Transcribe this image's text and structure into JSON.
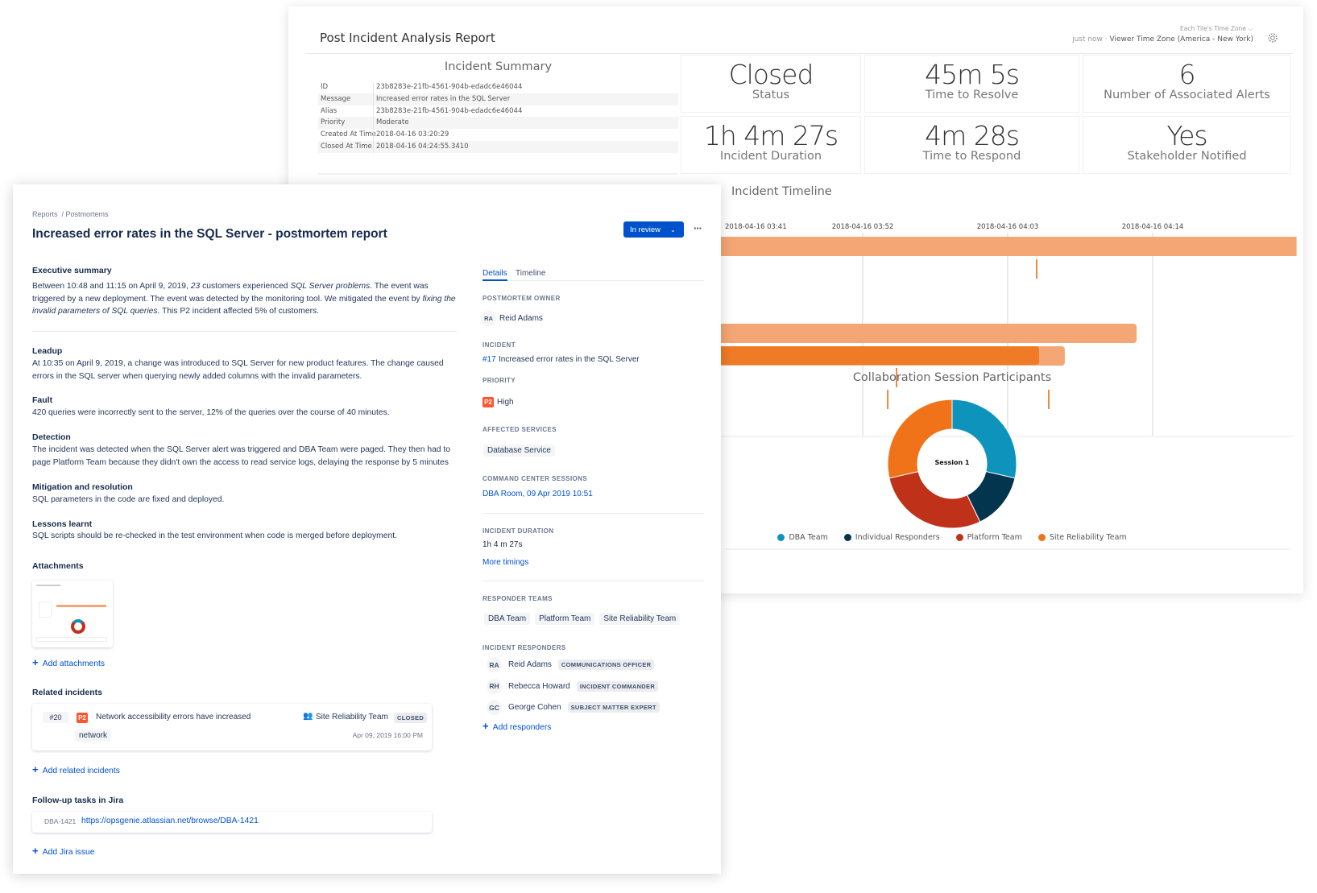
{
  "report": {
    "title": "Post Incident Analysis Report",
    "tz_select": "Each Tile's Time Zone",
    "updated": "just now",
    "separator": "·",
    "tz_label": "Viewer Time Zone (America - New York)",
    "settings_icon": "gear-icon"
  },
  "summary": {
    "title": "Incident Summary",
    "rows": [
      {
        "label": "ID",
        "value": "23b8283e-21fb-4561-904b-edadc6e46044"
      },
      {
        "label": "Message",
        "value": "Increased error rates in the SQL Server"
      },
      {
        "label": "Alias",
        "value": "23b8283e-21fb-4561-904b-edadc6e46044"
      },
      {
        "label": "Priority",
        "value": "Moderate"
      },
      {
        "label": "Created At Time",
        "value": "2018-04-16 03:20:29"
      },
      {
        "label": "Closed At Time",
        "value": "2018-04-16 04:24:55.3410"
      }
    ]
  },
  "tiles": [
    {
      "value": "Closed",
      "label": "Status"
    },
    {
      "value": "45m 5s",
      "label": "Time to Resolve"
    },
    {
      "value": "6",
      "label": "Number of Associated Alerts"
    },
    {
      "value": "1h 4m 27s",
      "label": "Incident Duration"
    },
    {
      "value": "4m 28s",
      "label": "Time to Respond"
    },
    {
      "value": "Yes",
      "label": "Stakeholder Notified"
    }
  ],
  "chart_data": [
    {
      "type": "timeline",
      "title": "Incident Timeline",
      "tick_labels": [
        "2018-04-16 03:41",
        "2018-04-16 03:52",
        "2018-04-16 04:03",
        "2018-04-16 04:14"
      ],
      "grid": true,
      "bars": [
        {
          "start": "03:20:29",
          "end": "04:24:55",
          "color": "#f4a674"
        },
        {
          "start": "03:20:29",
          "end": "04:12:47",
          "color": "#f4a674"
        },
        {
          "start": "03:20:29",
          "end": "04:07:20",
          "color": "#f4a674"
        },
        {
          "start": "03:20:29",
          "end": "04:05:23",
          "color": "#ef7b26"
        }
      ],
      "events": [
        {
          "time": "04:05:12",
          "row": 1
        },
        {
          "time": "03:54:34",
          "row": 3
        },
        {
          "time": "03:53:54",
          "row": 4
        },
        {
          "time": "04:06:07",
          "row": 4
        }
      ]
    },
    {
      "type": "pie",
      "title": "Collaboration Session Participants",
      "center_label": "Session 1",
      "legend_position": "bottom",
      "series": [
        {
          "name": "DBA Team",
          "value": 2,
          "color": "#0e94bc"
        },
        {
          "name": "Individual Responders",
          "value": 1,
          "color": "#04354f"
        },
        {
          "name": "Platform Team",
          "value": 2,
          "color": "#c0311a"
        },
        {
          "name": "Site Reliability Team",
          "value": 2,
          "color": "#f07319"
        }
      ]
    }
  ],
  "postmortem": {
    "breadcrumb": [
      "Reports",
      "/ Postmortems"
    ],
    "title": "Increased error rates in the SQL Server - postmortem report",
    "status_button": "In review",
    "more_icon": "···",
    "sections": {
      "exec_heading": "Executive summary",
      "exec_1": "Between 10:48 and 11:15 on April 9, 2019, ",
      "exec_2": "23",
      "exec_3": " customers experienced ",
      "exec_4": "SQL Server problems",
      "exec_5": ". The event was triggered by a new deployment. The event was detected by the monitoring tool. We mitigated the event by ",
      "exec_6": "fixing the invalid parameters of SQL queries",
      "exec_7": ". This P2 incident affected 5% of customers.",
      "leadup_heading": "Leadup",
      "leadup": "At 10:35 on April 9, 2019, a change was introduced to SQL Server for new product features. The change caused errors in the SQL server when querying newly added columns with the invalid parameters.",
      "fault_heading": "Fault",
      "fault": "420 queries were incorrectly sent to the server, 12% of the queries over the course of 40 minutes.",
      "detection_heading": "Detection",
      "detection": "The incident was detected when the SQL Server alert was triggered and DBA Team were paged. They then had to page Platform Team because they didn't own the access to read service logs, delaying the response by 5 minutes",
      "mitigation_heading": "Mitigation and resolution",
      "mitigation": "SQL parameters in the code are fixed and deployed.",
      "lessons_heading": "Lessons learnt",
      "lessons": "SQL scripts should be re-checked in the test environment when code is merged before deployment."
    },
    "attachments": {
      "heading": "Attachments",
      "add": "Add attachments"
    },
    "related": {
      "heading": "Related incidents",
      "id": "#20",
      "priority": "P2",
      "message": "Network accessibility errors have increased",
      "team": "Site Reliability Team",
      "status": "CLOSED",
      "tag": "network",
      "date": "Apr 09, 2019 16:00 PM",
      "add": "Add related incidents"
    },
    "jira": {
      "heading": "Follow-up tasks in Jira",
      "key": "DBA-1421",
      "url": "https://opsgenie.atlassian.net/browse/DBA-1421",
      "add": "Add Jira issue"
    },
    "details": {
      "tabs": [
        "Details",
        "Timeline"
      ],
      "owner_label": "POSTMORTEM OWNER",
      "owner_initials": "RA",
      "owner_name": "Reid Adams",
      "incident_label": "INCIDENT",
      "incident_id": "#17",
      "incident_msg": "Increased error rates in the SQL Server",
      "priority_label": "PRIORITY",
      "priority_badge": "P2",
      "priority_value": "High",
      "services_label": "AFFECTED SERVICES",
      "service": "Database Service",
      "sessions_label": "COMMAND CENTER SESSIONS",
      "session": "DBA Room, 09 Apr 2019 10:51",
      "duration_label": "INCIDENT DURATION",
      "duration": "1h 4 m 27s",
      "more_timings": "More timings",
      "teams_label": "RESPONDER TEAMS",
      "teams": [
        "DBA Team",
        "Platform Team",
        "Site Reliability Team"
      ],
      "responders_label": "INCIDENT RESPONDERS",
      "responders": [
        {
          "initials": "RA",
          "name": "Reid Adams",
          "role": "COMMUNICATIONS OFFICER"
        },
        {
          "initials": "RH",
          "name": "Rebecca Howard",
          "role": "INCIDENT COMMANDER"
        },
        {
          "initials": "GC",
          "name": "George Cohen",
          "role": "SUBJECT MATTER EXPERT"
        }
      ],
      "add_responders": "Add responders"
    }
  }
}
